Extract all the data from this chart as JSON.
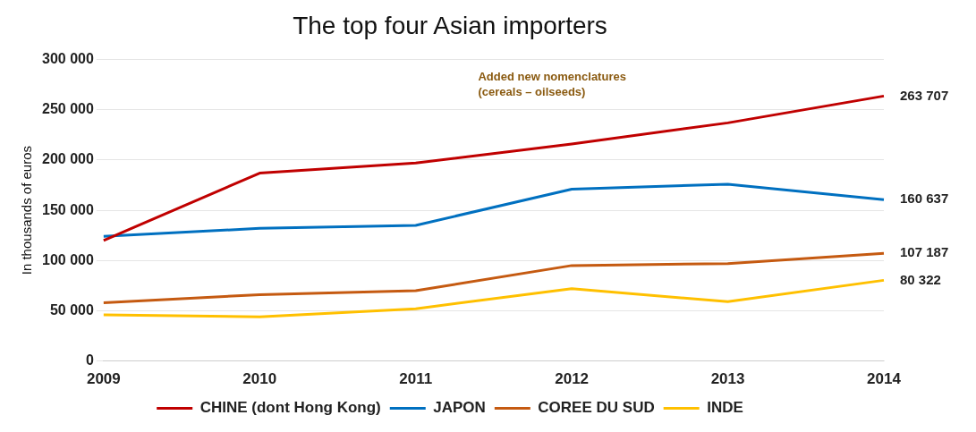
{
  "chart_data": {
    "type": "line",
    "title": "The top four Asian importers",
    "ylabel": "In thousands of euros",
    "categories": [
      "2009",
      "2010",
      "2011",
      "2012",
      "2013",
      "2014"
    ],
    "series": [
      {
        "name": "CHINE (dont Hong Kong)",
        "color": "#c00000",
        "values": [
          120000,
          187000,
          197000,
          216000,
          237000,
          263707
        ],
        "value_labels": [
          null,
          null,
          null,
          null,
          null,
          "263 707"
        ]
      },
      {
        "name": "JAPON",
        "color": "#0070c0",
        "values": [
          124000,
          132000,
          135000,
          171000,
          176000,
          160637
        ],
        "value_labels": [
          null,
          null,
          null,
          null,
          null,
          "160 637"
        ]
      },
      {
        "name": "COREE DU SUD",
        "color": "#c55a11",
        "values": [
          58000,
          66000,
          70000,
          95000,
          97000,
          107187
        ],
        "value_labels": [
          null,
          null,
          null,
          null,
          null,
          "107 187"
        ]
      },
      {
        "name": "INDE",
        "color": "#ffc000",
        "values": [
          46000,
          44000,
          52000,
          72000,
          59000,
          80322
        ],
        "value_labels": [
          null,
          null,
          null,
          null,
          null,
          "80 322"
        ]
      }
    ],
    "ylim": [
      0,
      300000
    ],
    "yticks": [
      {
        "value": 0,
        "label": "0"
      },
      {
        "value": 50000,
        "label": "50 000"
      },
      {
        "value": 100000,
        "label": "100 000"
      },
      {
        "value": 150000,
        "label": "150 000"
      },
      {
        "value": 200000,
        "label": "200 000"
      },
      {
        "value": 250000,
        "label": "250 000"
      },
      {
        "value": 300000,
        "label": "300 000"
      }
    ],
    "grid": "y",
    "legend": "bottom",
    "marker": "none",
    "line_style": "solid",
    "annotations": [
      "Added new nomenclatures\n(cereals – oilseeds)"
    ]
  }
}
